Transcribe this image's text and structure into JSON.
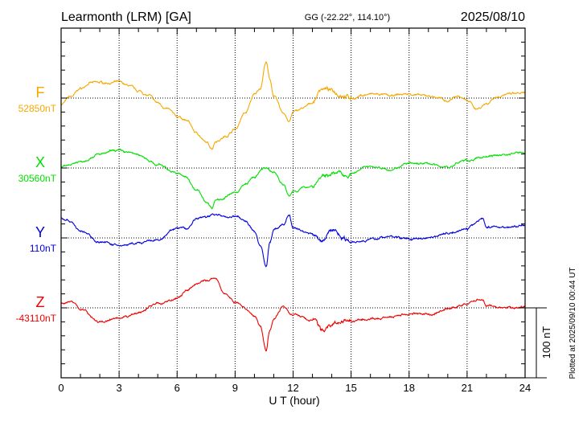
{
  "header": {
    "station": "Learmonth (LRM)  [GA]",
    "coords": "GG (-22.22°, 114.10°)",
    "date": "2025/08/10"
  },
  "footer": {
    "plotted": "Plotted at 2025/09/10 00:44 UT",
    "scale_label": "100 nT"
  },
  "chart_data": {
    "type": "line",
    "title": "Learmonth (LRM)  [GA]",
    "xlabel": "U T (hour)",
    "ylabel": "",
    "xlim": [
      0,
      24
    ],
    "xticks": [
      "0",
      "3",
      "6",
      "9",
      "12",
      "15",
      "18",
      "21",
      "24"
    ],
    "scale_nT": 100,
    "series": [
      {
        "name": "F",
        "baseline_label": "52850nT",
        "baseline": 52850,
        "color": "#f5a800",
        "t": [
          0,
          0.5,
          1,
          1.5,
          2,
          3,
          3.5,
          4,
          4.5,
          5,
          5.5,
          6,
          6.5,
          7,
          7.5,
          7.8,
          8,
          8.5,
          9,
          9.5,
          10,
          10.3,
          10.6,
          10.8,
          11,
          11.5,
          11.8,
          12,
          12.5,
          13,
          13.5,
          14,
          14.5,
          15,
          16,
          17,
          18,
          19,
          20,
          20.5,
          21,
          21.5,
          22,
          22.5,
          23,
          24
        ],
        "values": [
          -9,
          2,
          14,
          21,
          22,
          22,
          18,
          11,
          5,
          -7,
          -15,
          -26,
          -32,
          -49,
          -64,
          -72,
          -61,
          -55,
          -44,
          -21,
          5,
          14,
          51,
          25,
          2,
          -21,
          -34,
          -21,
          -15,
          -7,
          14,
          8,
          5,
          0,
          5,
          2,
          5,
          2,
          -3,
          5,
          -3,
          -15,
          -7,
          2,
          5,
          5
        ]
      },
      {
        "name": "X",
        "baseline_label": "30560nT",
        "baseline": 30560,
        "color": "#00e000",
        "t": [
          0,
          1,
          2,
          3,
          3.5,
          4,
          5,
          6,
          6.5,
          7,
          7.5,
          7.8,
          8,
          9,
          9.5,
          10,
          10.5,
          11,
          11.5,
          11.8,
          12,
          13,
          13.5,
          14,
          15,
          16,
          17,
          18,
          19,
          20,
          21,
          22,
          23,
          24
        ],
        "values": [
          1,
          10,
          20,
          26,
          24,
          20,
          5,
          -7,
          -13,
          -30,
          -47,
          -56,
          -45,
          -36,
          -24,
          -13,
          -1,
          -7,
          -24,
          -41,
          -33,
          -26,
          -13,
          -7,
          -7,
          1,
          -1,
          5,
          5,
          1,
          10,
          16,
          20,
          22
        ]
      },
      {
        "name": "Y",
        "baseline_label": "110nT",
        "baseline": 110,
        "color": "#0000e0",
        "t": [
          0,
          0.5,
          1,
          2,
          3,
          4,
          5,
          6,
          6.5,
          7,
          7.5,
          8,
          8.5,
          9,
          9.5,
          10,
          10.3,
          10.6,
          10.8,
          11,
          11.5,
          11.8,
          12,
          13,
          13.5,
          14,
          15,
          16,
          17,
          18,
          19,
          20,
          21,
          21.8,
          22,
          23,
          24
        ],
        "values": [
          28,
          24,
          9,
          -5,
          -10,
          -8,
          -5,
          13,
          13,
          28,
          32,
          36,
          30,
          32,
          24,
          9,
          -10,
          -41,
          -5,
          13,
          18,
          32,
          13,
          7,
          -5,
          13,
          -5,
          -2,
          1,
          -2,
          1,
          7,
          13,
          28,
          16,
          16,
          18
        ]
      },
      {
        "name": "Z",
        "baseline_label": "-43110nT",
        "baseline": -43110,
        "color": "#f00000",
        "t": [
          0,
          0.5,
          1,
          2,
          3,
          4,
          5,
          6,
          6.5,
          7,
          7.5,
          8,
          8.5,
          9,
          9.5,
          10,
          10.3,
          10.6,
          10.8,
          11,
          11.5,
          12,
          13,
          13.5,
          14,
          15,
          16,
          17,
          18,
          19,
          20,
          21,
          21.8,
          22,
          23,
          24
        ],
        "values": [
          6,
          9,
          -2,
          -20,
          -17,
          -8,
          6,
          13,
          24,
          36,
          40,
          44,
          21,
          9,
          0,
          -11,
          -25,
          -60,
          -31,
          -14,
          3,
          -10,
          -17,
          -31,
          -22,
          -20,
          -17,
          -14,
          -8,
          -10,
          -2,
          6,
          13,
          3,
          0,
          1
        ]
      }
    ]
  }
}
